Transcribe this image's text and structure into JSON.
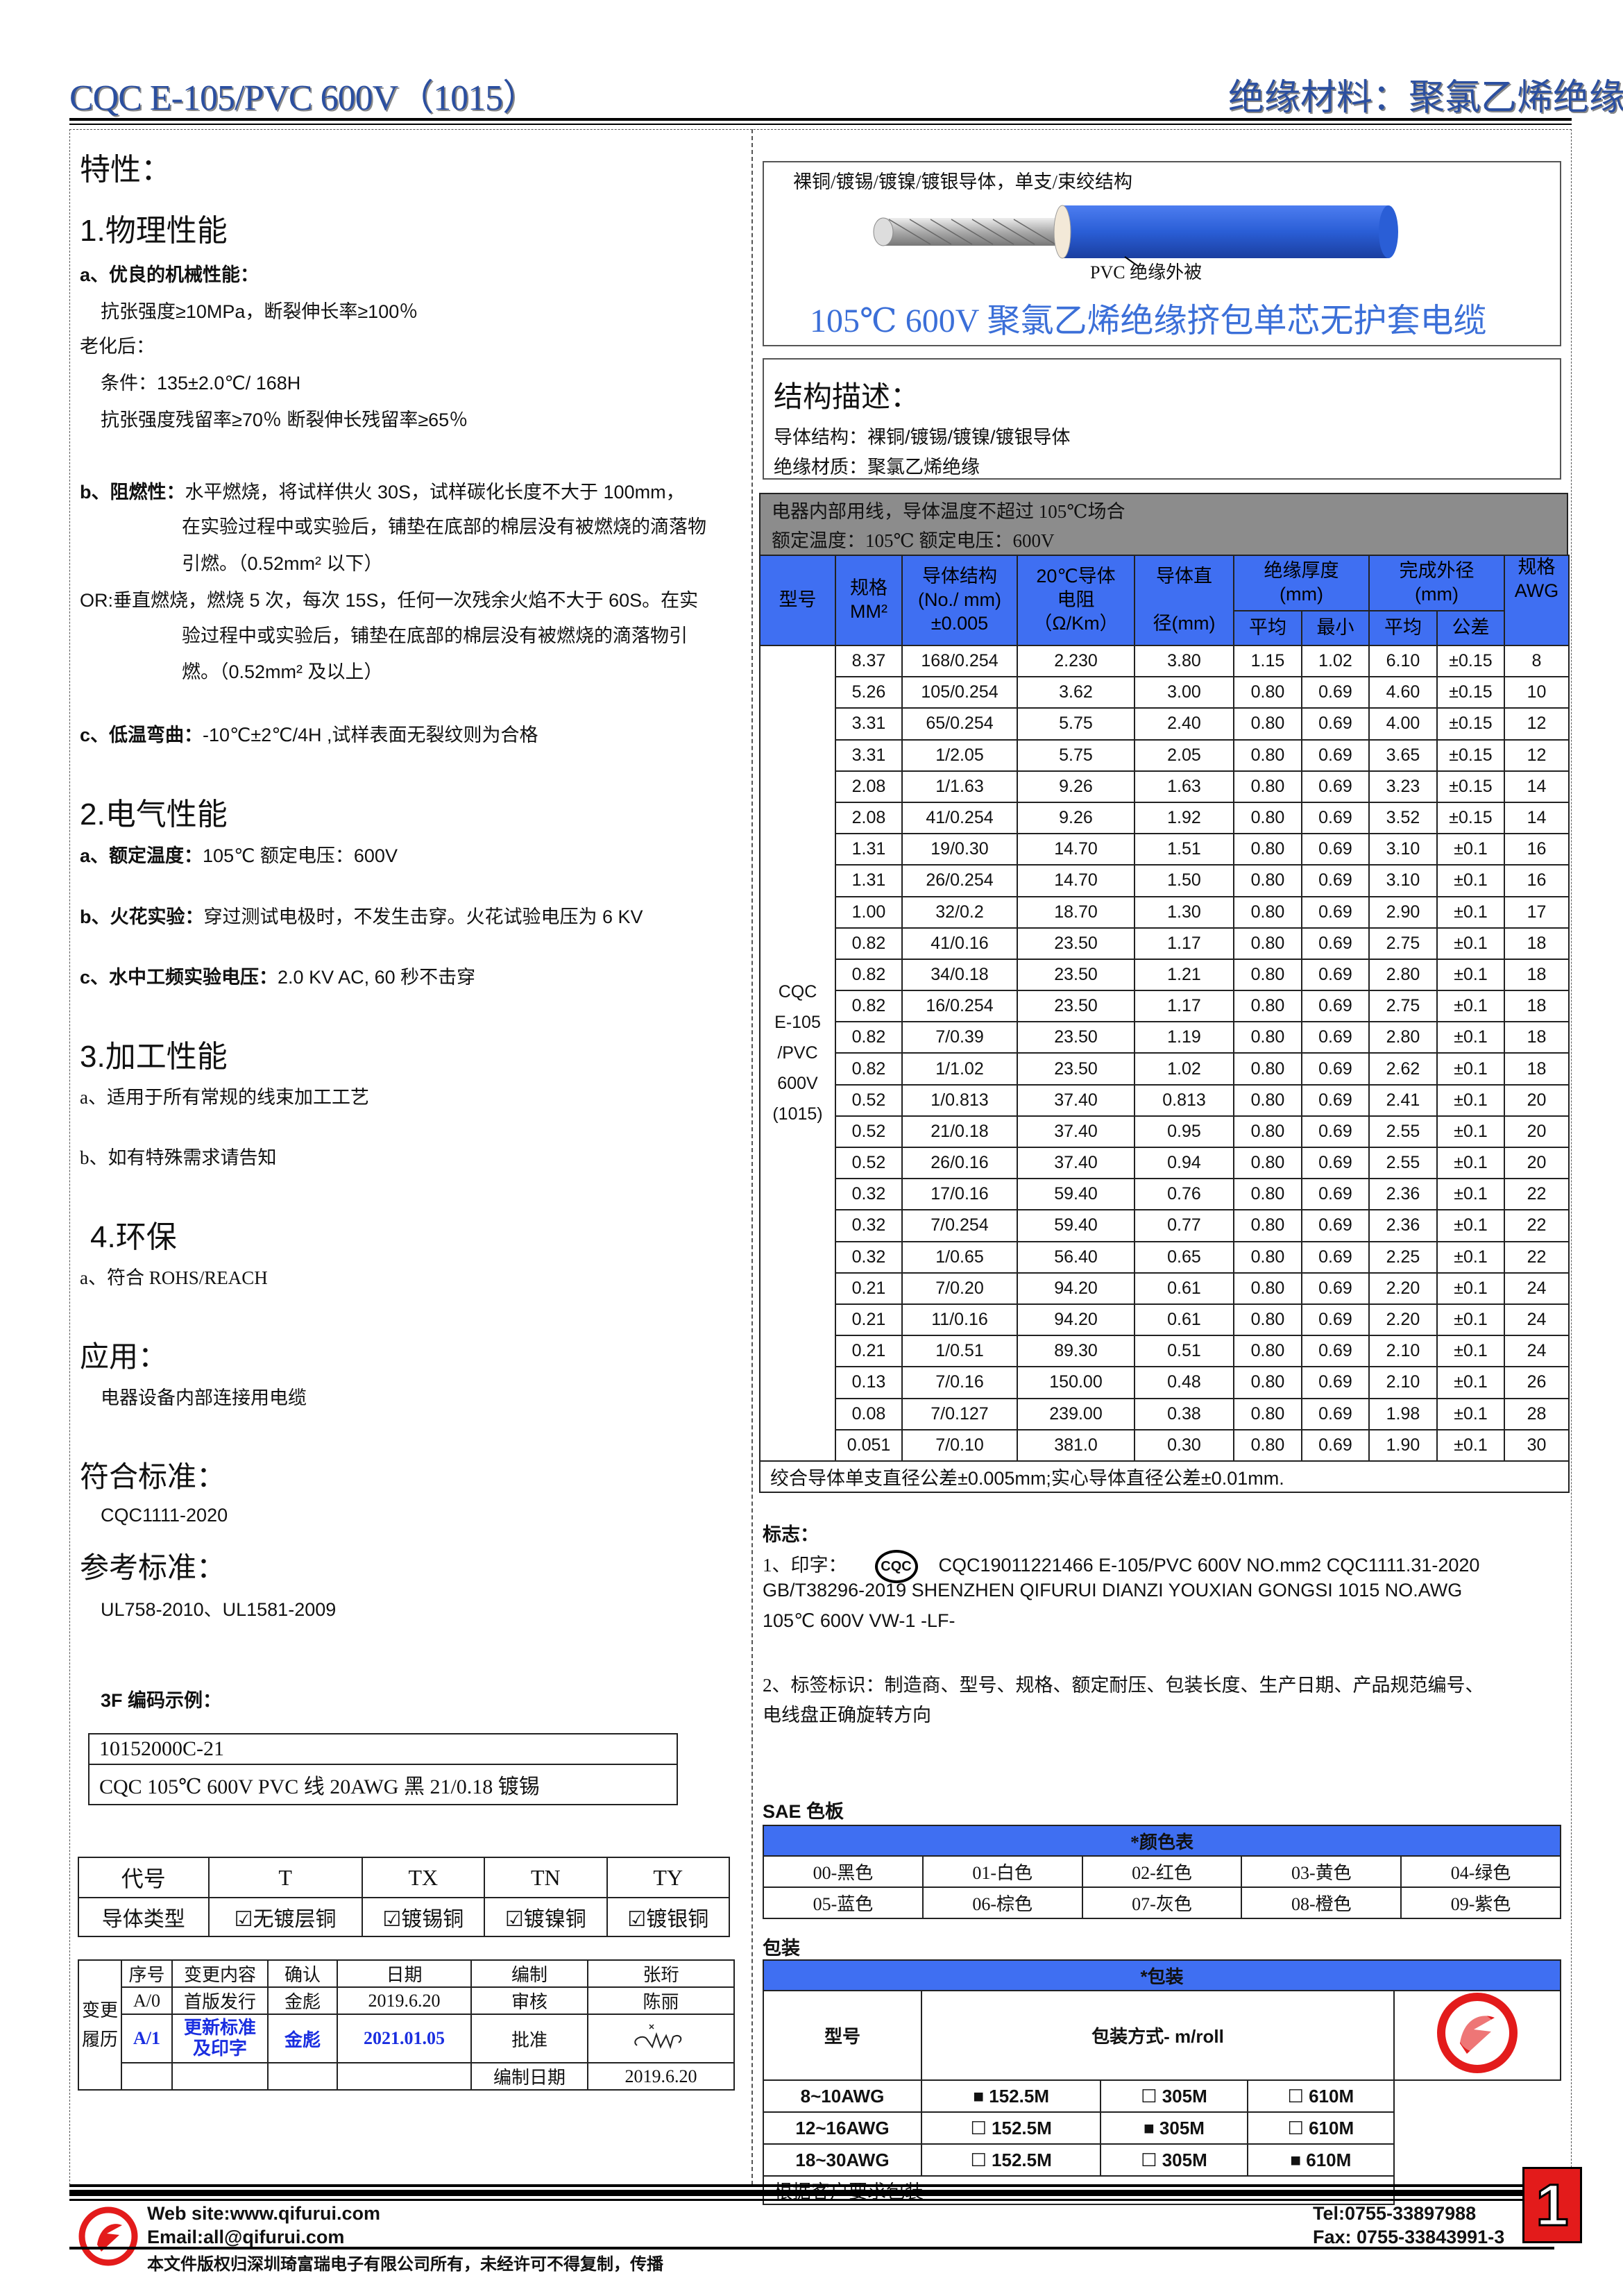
{
  "header": {
    "title": "CQC E-105/PVC 600V（1015）",
    "category": "绝缘材料：聚氯乙烯绝缘"
  },
  "left": {
    "features_title": "特性：",
    "physical": {
      "title": "1.物理性能",
      "a_label": "a、优良的机械性能：",
      "a_line1": "抗张强度≥10MPa，断裂伸长率≥100％",
      "aging_label": "老化后：",
      "aging_cond": "条件：135±2.0℃/ 168H",
      "aging_result": "抗张强度残留率≥70％  断裂伸长残留率≥65％",
      "b_label": "b、阻燃性：",
      "b_line1": "水平燃烧，将试样供火 30S，试样碳化长度不大于 100mm，",
      "b_line2": "在实验过程中或实验后，铺垫在底部的棉层没有被燃烧的滴落物",
      "b_line3": "引燃。（0.52mm² 以下）",
      "or_line1": "OR:垂直燃烧，燃烧 5 次，每次 15S，任何一次残余火焰不大于 60S。在实",
      "or_line2": "验过程中或实验后，铺垫在底部的棉层没有被燃烧的滴落物引",
      "or_line3": "燃。（0.52mm² 及以上）",
      "c_label": "c、低温弯曲：",
      "c_text": "-10℃±2℃/4H ,试样表面无裂纹则为合格"
    },
    "electrical": {
      "title": "2.电气性能",
      "a_label": "a、额定温度：",
      "a_text": "105℃    额定电压：600V",
      "b_label": "b、火花实验：",
      "b_text": "穿过测试电极时，不发生击穿。火花试验电压为 6 KV",
      "c_label": "c、水中工频实验电压：",
      "c_text": "2.0 KV AC, 60 秒不击穿"
    },
    "processing": {
      "title": "3.加工性能",
      "a": "a、适用于所有常规的线束加工工艺",
      "b": "b、如有特殊需求请告知"
    },
    "env": {
      "title": "4.环保",
      "a": "a、符合 ROHS/REACH"
    },
    "application": {
      "title": "应用：",
      "text": "电器设备内部连接用电缆"
    },
    "standard": {
      "title": "符合标准：",
      "text": "CQC1111-2020"
    },
    "reference": {
      "title": "参考标准：",
      "text": "UL758-2010、UL1581-2009"
    },
    "code_example": {
      "title": "3F 编码示例：",
      "code": "10152000C-21",
      "desc": "CQC 105℃  600V PVC 线    20AWG  黑  21/0.18 镀锡"
    },
    "conductor_table": {
      "headers": [
        "代号",
        "T",
        "TX",
        "TN",
        "TY"
      ],
      "row_label": "导体类型",
      "values": [
        "无镀层铜",
        "镀锡铜",
        "镀镍铜",
        "镀银铜"
      ],
      "checked": true
    },
    "revision": {
      "side_label": "变更履历",
      "header": [
        "序号",
        "变更内容",
        "确认",
        "日期",
        "编制",
        "张珩"
      ],
      "row1": [
        "A/0",
        "首版发行",
        "金彪",
        "2019.6.20",
        "审核",
        "陈丽"
      ],
      "row2": [
        "A/1",
        "更新标准及印字",
        "金彪",
        "2021.01.05",
        "批准"
      ],
      "row3_label": "编制日期",
      "row3_value": "2019.6.20"
    }
  },
  "right": {
    "wire": {
      "conductor_label": "裸铜/镀锡/镀镍/镀银导体，单支/束绞结构",
      "insulation_label": "PVC  绝缘外被",
      "title": "105℃  600V 聚氯乙烯绝缘挤包单芯无护套电缆",
      "jacket_color": "#2a5ed6"
    },
    "structure": {
      "title": "结构描述：",
      "conductor": "导体结构：裸铜/镀锡/镀镍/镀银导体",
      "insulation": "绝缘材质：聚氯乙烯绝缘"
    },
    "spec_table": {
      "note1": "电器内部用线，导体温度不超过 105℃场合",
      "note2": "额定温度：105℃  额定电压：600V",
      "headers": {
        "model": "型号",
        "size": "规格",
        "size_unit": "MM²",
        "cond1": "导体结构",
        "cond2": "(No./ mm)",
        "cond3": "±0.005",
        "res1": "20℃导体",
        "res2": "电阻",
        "res3": "（Ω/Km）",
        "dia1": "导体直",
        "dia2": "径(mm)",
        "ins1": "绝缘厚度",
        "ins2": "(mm)",
        "ins_avg": "平均",
        "ins_min": "最小",
        "od1": "完成外径",
        "od2": "(mm)",
        "od_avg": "平均",
        "od_tol": "公差",
        "awg1": "规格",
        "awg2": "AWG"
      },
      "model_lines": [
        "CQC",
        "E-105",
        "/PVC",
        "600V",
        "(1015)"
      ],
      "rows": [
        [
          "8.37",
          "168/0.254",
          "2.230",
          "3.80",
          "1.15",
          "1.02",
          "6.10",
          "±0.15",
          "8"
        ],
        [
          "5.26",
          "105/0.254",
          "3.62",
          "3.00",
          "0.80",
          "0.69",
          "4.60",
          "±0.15",
          "10"
        ],
        [
          "3.31",
          "65/0.254",
          "5.75",
          "2.40",
          "0.80",
          "0.69",
          "4.00",
          "±0.15",
          "12"
        ],
        [
          "3.31",
          "1/2.05",
          "5.75",
          "2.05",
          "0.80",
          "0.69",
          "3.65",
          "±0.15",
          "12"
        ],
        [
          "2.08",
          "1/1.63",
          "9.26",
          "1.63",
          "0.80",
          "0.69",
          "3.23",
          "±0.15",
          "14"
        ],
        [
          "2.08",
          "41/0.254",
          "9.26",
          "1.92",
          "0.80",
          "0.69",
          "3.52",
          "±0.15",
          "14"
        ],
        [
          "1.31",
          "19/0.30",
          "14.70",
          "1.51",
          "0.80",
          "0.69",
          "3.10",
          "±0.1",
          "16"
        ],
        [
          "1.31",
          "26/0.254",
          "14.70",
          "1.50",
          "0.80",
          "0.69",
          "3.10",
          "±0.1",
          "16"
        ],
        [
          "1.00",
          "32/0.2",
          "18.70",
          "1.30",
          "0.80",
          "0.69",
          "2.90",
          "±0.1",
          "17"
        ],
        [
          "0.82",
          "41/0.16",
          "23.50",
          "1.17",
          "0.80",
          "0.69",
          "2.75",
          "±0.1",
          "18"
        ],
        [
          "0.82",
          "34/0.18",
          "23.50",
          "1.21",
          "0.80",
          "0.69",
          "2.80",
          "±0.1",
          "18"
        ],
        [
          "0.82",
          "16/0.254",
          "23.50",
          "1.17",
          "0.80",
          "0.69",
          "2.75",
          "±0.1",
          "18"
        ],
        [
          "0.82",
          "7/0.39",
          "23.50",
          "1.19",
          "0.80",
          "0.69",
          "2.80",
          "±0.1",
          "18"
        ],
        [
          "0.82",
          "1/1.02",
          "23.50",
          "1.02",
          "0.80",
          "0.69",
          "2.62",
          "±0.1",
          "18"
        ],
        [
          "0.52",
          "1/0.813",
          "37.40",
          "0.813",
          "0.80",
          "0.69",
          "2.41",
          "±0.1",
          "20"
        ],
        [
          "0.52",
          "21/0.18",
          "37.40",
          "0.95",
          "0.80",
          "0.69",
          "2.55",
          "±0.1",
          "20"
        ],
        [
          "0.52",
          "26/0.16",
          "37.40",
          "0.94",
          "0.80",
          "0.69",
          "2.55",
          "±0.1",
          "20"
        ],
        [
          "0.32",
          "17/0.16",
          "59.40",
          "0.76",
          "0.80",
          "0.69",
          "2.36",
          "±0.1",
          "22"
        ],
        [
          "0.32",
          "7/0.254",
          "59.40",
          "0.77",
          "0.80",
          "0.69",
          "2.36",
          "±0.1",
          "22"
        ],
        [
          "0.32",
          "1/0.65",
          "56.40",
          "0.65",
          "0.80",
          "0.69",
          "2.25",
          "±0.1",
          "22"
        ],
        [
          "0.21",
          "7/0.20",
          "94.20",
          "0.61",
          "0.80",
          "0.69",
          "2.20",
          "±0.1",
          "24"
        ],
        [
          "0.21",
          "11/0.16",
          "94.20",
          "0.61",
          "0.80",
          "0.69",
          "2.20",
          "±0.1",
          "24"
        ],
        [
          "0.21",
          "1/0.51",
          "89.30",
          "0.51",
          "0.80",
          "0.69",
          "2.10",
          "±0.1",
          "24"
        ],
        [
          "0.13",
          "7/0.16",
          "150.00",
          "0.48",
          "0.80",
          "0.69",
          "2.10",
          "±0.1",
          "26"
        ],
        [
          "0.08",
          "7/0.127",
          "239.00",
          "0.38",
          "0.80",
          "0.69",
          "1.98",
          "±0.1",
          "28"
        ],
        [
          "0.051",
          "7/0.10",
          "381.0",
          "0.30",
          "0.80",
          "0.69",
          "1.90",
          "±0.1",
          "30"
        ]
      ],
      "footnote": "绞合导体单支直径公差±0.005mm;实心导体直径公差±0.01mm.",
      "header_color": "#3f6ff2",
      "note_bg": "#8c8c8c"
    },
    "marking": {
      "title": "标志：",
      "line1_prefix": "1、印字：",
      "cqc_logo": "CQC",
      "line1": "CQC19011221466  E-105/PVC  600V  NO.mm2  CQC1111.31-2020",
      "line2": "GB/T38296-2019 SHENZHEN QIFURUI DIANZI YOUXIAN GONGSI      1015 NO.AWG",
      "line3": "105℃  600V VW-1 -LF-",
      "line4": "2、标签标识：制造商、型号、规格、额定耐压、包装长度、生产日期、产品规范编号、",
      "line5": "电线盘正确旋转方向"
    },
    "color_board": {
      "title": "SAE 色板",
      "header": "*颜色表",
      "colors": [
        "00-黑色",
        "01-白色",
        "02-红色",
        "03-黄色",
        "04-绿色",
        "05-蓝色",
        "06-棕色",
        "07-灰色",
        "08-橙色",
        "09-紫色"
      ]
    },
    "packaging": {
      "title": "包装",
      "header": "*包装",
      "col_model": "型号",
      "col_method": "包装方式- m/roll",
      "rows": [
        {
          "model": "8~10AWG",
          "options": [
            "152.5M",
            "305M",
            "610M"
          ],
          "selected": 0
        },
        {
          "model": "12~16AWG",
          "options": [
            "152.5M",
            "305M",
            "610M"
          ],
          "selected": 1
        },
        {
          "model": "18~30AWG",
          "options": [
            "152.5M",
            "305M",
            "610M"
          ],
          "selected": 2
        }
      ],
      "note": "根据客户要求包装"
    }
  },
  "footer": {
    "website": "Web site:www.qifurui.com",
    "email": "Email:all@qifurui.com",
    "tel": "Tel:0755-33897988",
    "fax": "Fax: 0755-33843991-3",
    "page": "1",
    "copyright": "本文件版权归深圳琦富瑞电子有限公司所有，未经许可不得复制，传播",
    "brand_color": "#e31b1b"
  }
}
